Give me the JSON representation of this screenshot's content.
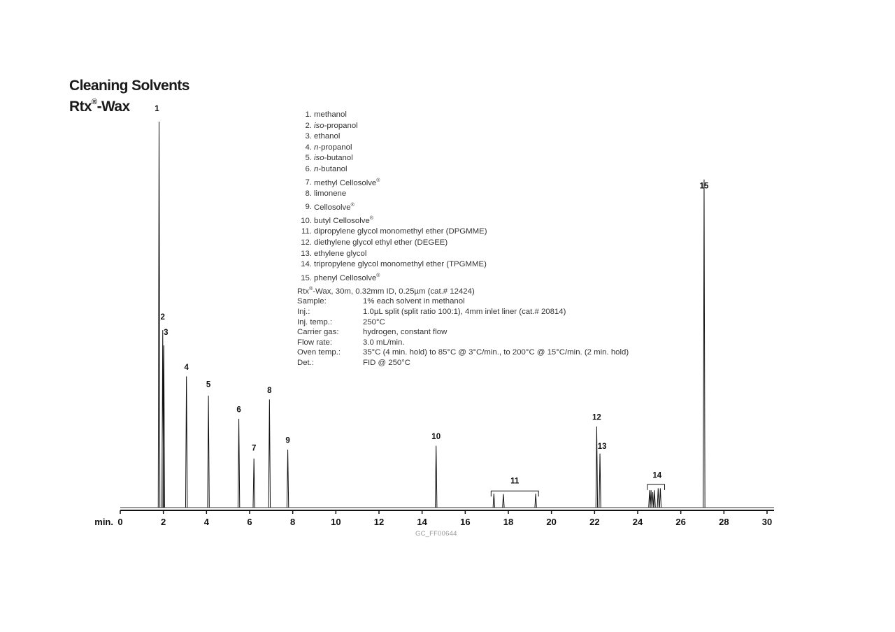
{
  "title": "Cleaning Solvents",
  "subtitle_main": "Rtx",
  "subtitle_reg": "®",
  "subtitle_rest": "-Wax",
  "compounds": [
    {
      "n": "1.",
      "pre": "",
      "italic": "",
      "name": "methanol",
      "reg": ""
    },
    {
      "n": "2.",
      "pre": "",
      "italic": "iso",
      "name": "-propanol",
      "reg": ""
    },
    {
      "n": "3.",
      "pre": "",
      "italic": "",
      "name": "ethanol",
      "reg": ""
    },
    {
      "n": "4.",
      "pre": "",
      "italic": "n",
      "name": "-propanol",
      "reg": ""
    },
    {
      "n": "5.",
      "pre": "",
      "italic": "iso",
      "name": "-butanol",
      "reg": ""
    },
    {
      "n": "6.",
      "pre": "",
      "italic": "n",
      "name": "-butanol",
      "reg": ""
    },
    {
      "n": "7.",
      "pre": "",
      "italic": "",
      "name": "methyl Cellosolve",
      "reg": "®"
    },
    {
      "n": "8.",
      "pre": "",
      "italic": "",
      "name": "limonene",
      "reg": ""
    },
    {
      "n": "9.",
      "pre": "",
      "italic": "",
      "name": "Cellosolve",
      "reg": "®"
    },
    {
      "n": "10.",
      "pre": "",
      "italic": "",
      "name": "butyl Cellosolve",
      "reg": "®"
    },
    {
      "n": "11.",
      "pre": "",
      "italic": "",
      "name": "dipropylene glycol monomethyl ether (DPGMME)",
      "reg": ""
    },
    {
      "n": "12.",
      "pre": "",
      "italic": "",
      "name": "diethylene glycol ethyl ether (DEGEE)",
      "reg": ""
    },
    {
      "n": "13.",
      "pre": "",
      "italic": "",
      "name": "ethylene glycol",
      "reg": ""
    },
    {
      "n": "14.",
      "pre": "",
      "italic": "",
      "name": "tripropylene glycol monomethyl ether (TPGMME)",
      "reg": ""
    },
    {
      "n": "15.",
      "pre": "",
      "italic": "",
      "name": "phenyl Cellosolve",
      "reg": ""
    }
  ],
  "phenyl_reg": "®",
  "column_line_a": "Rtx",
  "column_line_reg": "®",
  "column_line_b": "-Wax, 30m, 0.32mm ID, 0.25µm (cat.# 12424)",
  "conditions": [
    {
      "key": "Sample:",
      "value": "1% each solvent in methanol"
    },
    {
      "key": "Inj.:",
      "value": "1.0µL split (split ratio 100:1), 4mm inlet liner (cat.# 20814)"
    },
    {
      "key": "Inj. temp.:",
      "value": "250°C"
    },
    {
      "key": "Carrier gas:",
      "value": "hydrogen, constant flow"
    },
    {
      "key": "Flow rate:",
      "value": "3.0 mL/min."
    },
    {
      "key": "Oven temp.:",
      "value": "35°C (4 min. hold) to 85°C @ 3°C/min., to 200°C @ 15°C/min. (2 min. hold)"
    },
    {
      "key": "Det.:",
      "value": "FID @ 250°C"
    }
  ],
  "gc_id": "GC_FF00644",
  "chart_data": {
    "type": "line",
    "xlabel": "min.",
    "xlim": [
      0,
      30
    ],
    "x_ticks": [
      0,
      2,
      4,
      6,
      8,
      10,
      12,
      14,
      16,
      18,
      20,
      22,
      24,
      26,
      28,
      30
    ],
    "ylim": [
      0,
      1
    ],
    "grid": false,
    "peaks": [
      {
        "label": "1",
        "rt": 1.8,
        "height": 1.0
      },
      {
        "label": "2",
        "rt": 1.97,
        "height": 0.46
      },
      {
        "label": "3",
        "rt": 2.02,
        "height": 0.42
      },
      {
        "label": "4",
        "rt": 3.07,
        "height": 0.34
      },
      {
        "label": "5",
        "rt": 4.09,
        "height": 0.29
      },
      {
        "label": "6",
        "rt": 5.5,
        "height": 0.23
      },
      {
        "label": "7",
        "rt": 6.2,
        "height": 0.127
      },
      {
        "label": "8",
        "rt": 6.92,
        "height": 0.28
      },
      {
        "label": "9",
        "rt": 7.77,
        "height": 0.15
      },
      {
        "label": "10",
        "rt": 14.65,
        "height": 0.16
      },
      {
        "label": "11",
        "rt": 17.33,
        "height": 0.036
      },
      {
        "label": "11",
        "rt": 17.77,
        "height": 0.035
      },
      {
        "label": "11",
        "rt": 19.27,
        "height": 0.036
      },
      {
        "label": "12",
        "rt": 22.1,
        "height": 0.21
      },
      {
        "label": "13",
        "rt": 22.25,
        "height": 0.14
      },
      {
        "label": "14",
        "rt": 24.55,
        "height": 0.045
      },
      {
        "label": "14",
        "rt": 24.62,
        "height": 0.045
      },
      {
        "label": "14",
        "rt": 24.7,
        "height": 0.04
      },
      {
        "label": "14",
        "rt": 24.78,
        "height": 0.045
      },
      {
        "label": "14",
        "rt": 24.95,
        "height": 0.05
      },
      {
        "label": "14",
        "rt": 25.05,
        "height": 0.05
      },
      {
        "label": "15",
        "rt": 27.08,
        "height": 0.85
      }
    ],
    "peak_labels": [
      {
        "text": "1",
        "rt": 1.7,
        "height": 1.02
      },
      {
        "text": "2",
        "rt": 1.97,
        "height": 0.48
      },
      {
        "text": "3",
        "rt": 2.12,
        "height": 0.44
      },
      {
        "text": "4",
        "rt": 3.07,
        "height": 0.35
      },
      {
        "text": "5",
        "rt": 4.09,
        "height": 0.305
      },
      {
        "text": "6",
        "rt": 5.5,
        "height": 0.24
      },
      {
        "text": "7",
        "rt": 6.2,
        "height": 0.14
      },
      {
        "text": "8",
        "rt": 6.92,
        "height": 0.29
      },
      {
        "text": "9",
        "rt": 7.77,
        "height": 0.16
      },
      {
        "text": "10",
        "rt": 14.65,
        "height": 0.17
      },
      {
        "text": "11",
        "rt": 18.3,
        "height": 0.055
      },
      {
        "text": "12",
        "rt": 22.1,
        "height": 0.22
      },
      {
        "text": "13",
        "rt": 22.35,
        "height": 0.145
      },
      {
        "text": "14",
        "rt": 24.9,
        "height": 0.07
      },
      {
        "text": "15",
        "rt": 27.08,
        "height": 0.82
      }
    ],
    "brackets": [
      {
        "label": "11",
        "start": 17.2,
        "end": 19.4,
        "height": 0.043
      },
      {
        "label": "14",
        "start": 24.45,
        "end": 25.25,
        "height": 0.06
      }
    ]
  }
}
